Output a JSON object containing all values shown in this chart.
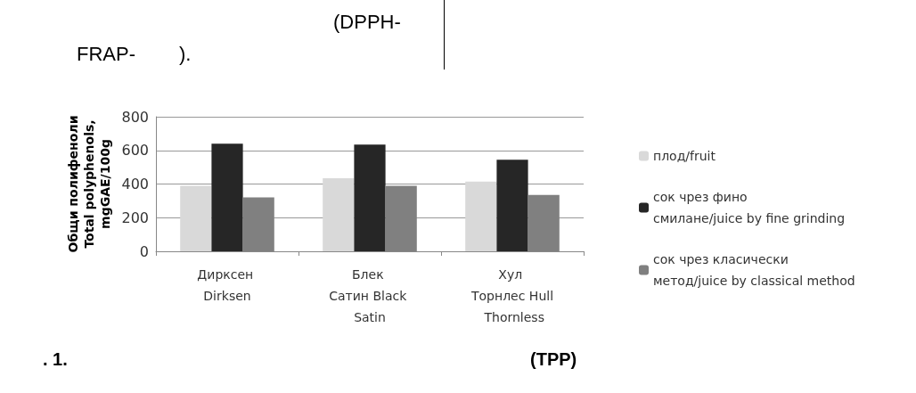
{
  "chart_data": {
    "type": "bar",
    "categories": [
      "Дирксен Dirksen",
      "Блек Сатин Black Satin",
      "Хул Торнлес Hull Thornless"
    ],
    "ylabel": "Общи полифеноли\nTotal polyphenols,\nmgGAE/100g",
    "series": [
      {
        "name": "плод/fruit",
        "color": "#d9d9d9",
        "values": [
          390,
          435,
          415
        ]
      },
      {
        "name": "сок чрез фино смилане/juice by fine grinding",
        "color": "#262626",
        "values": [
          640,
          635,
          545
        ]
      },
      {
        "name": "сок чрез класически метод/juice by classical method",
        "color": "#808080",
        "values": [
          320,
          390,
          335
        ]
      }
    ],
    "ylim": [
      0,
      800
    ],
    "yticks": [
      0,
      200,
      400,
      600,
      800
    ],
    "grid": "y",
    "legend": "right",
    "annotations": [
      "(DPPH-",
      "FRAP-        ).",
      ". 1.",
      "(TPP)"
    ]
  }
}
